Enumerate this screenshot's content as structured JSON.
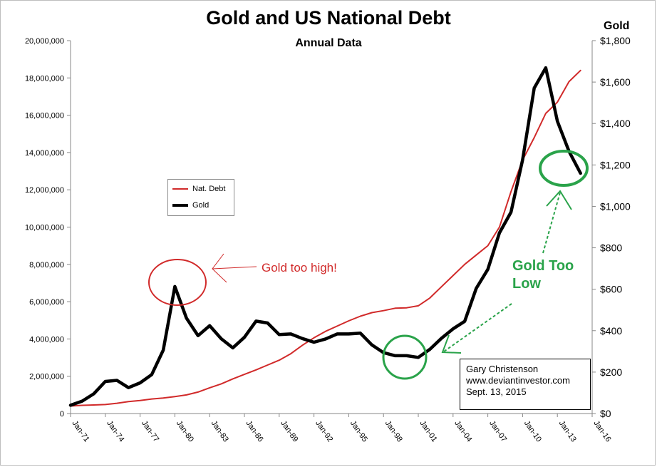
{
  "chart_data": {
    "type": "line",
    "title": "Gold and US National Debt",
    "subtitle": "Annual Data",
    "xlabel": "",
    "ylabel": "",
    "y2label": "Gold",
    "x_tick_labels": [
      "Jan-71",
      "Jan-74",
      "Jan-77",
      "Jan-80",
      "Jan-83",
      "Jan-86",
      "Jan-89",
      "Jan-92",
      "Jan-95",
      "Jan-98",
      "Jan-01",
      "Jan-04",
      "Jan-07",
      "Jan-10",
      "Jan-13",
      "Jan-16"
    ],
    "x_range": [
      1971,
      2016
    ],
    "ylim": [
      0,
      20000000
    ],
    "y_ticks": [
      0,
      2000000,
      4000000,
      6000000,
      8000000,
      10000000,
      12000000,
      14000000,
      16000000,
      18000000,
      20000000
    ],
    "y_tick_labels": [
      "0",
      "2,000,000",
      "4,000,000",
      "6,000,000",
      "8,000,000",
      "10,000,000",
      "12,000,000",
      "14,000,000",
      "16,000,000",
      "18,000,000",
      "20,000,000"
    ],
    "y2lim": [
      0,
      1800
    ],
    "y2_ticks": [
      0,
      200,
      400,
      600,
      800,
      1000,
      1200,
      1400,
      1600,
      1800
    ],
    "y2_tick_labels": [
      "$0",
      "$200",
      "$400",
      "$600",
      "$800",
      "$1,000",
      "$1,200",
      "$1,400",
      "$1,600",
      "$1,800"
    ],
    "grid": false,
    "legend_position": "middle-left",
    "series": [
      {
        "name": "Nat. Debt",
        "axis": "left",
        "color": "#d12a2a",
        "x": [
          1971,
          1972,
          1973,
          1974,
          1975,
          1976,
          1977,
          1978,
          1979,
          1980,
          1981,
          1982,
          1983,
          1984,
          1985,
          1986,
          1987,
          1988,
          1989,
          1990,
          1991,
          1992,
          1993,
          1994,
          1995,
          1996,
          1997,
          1998,
          1999,
          2000,
          2001,
          2002,
          2003,
          2004,
          2005,
          2006,
          2007,
          2008,
          2009,
          2010,
          2011,
          2012,
          2013,
          2014,
          2015
        ],
        "values": [
          400000,
          440000,
          460000,
          480000,
          550000,
          640000,
          700000,
          780000,
          830000,
          910000,
          1000000,
          1150000,
          1380000,
          1590000,
          1860000,
          2100000,
          2340000,
          2600000,
          2860000,
          3210000,
          3660000,
          4060000,
          4410000,
          4690000,
          4970000,
          5220000,
          5410000,
          5520000,
          5650000,
          5670000,
          5780000,
          6200000,
          6800000,
          7400000,
          8000000,
          8500000,
          9000000,
          10000000,
          11900000,
          13600000,
          14800000,
          16100000,
          16700000,
          17800000,
          18400000
        ]
      },
      {
        "name": "Gold",
        "axis": "right",
        "color": "#000000",
        "x": [
          1971,
          1972,
          1973,
          1974,
          1975,
          1976,
          1977,
          1978,
          1979,
          1980,
          1981,
          1982,
          1983,
          1984,
          1985,
          1986,
          1987,
          1988,
          1989,
          1990,
          1991,
          1992,
          1993,
          1994,
          1995,
          1996,
          1997,
          1998,
          1999,
          2000,
          2001,
          2002,
          2003,
          2004,
          2005,
          2006,
          2007,
          2008,
          2009,
          2010,
          2011,
          2012,
          2013,
          2014,
          2015
        ],
        "values": [
          40,
          60,
          95,
          155,
          160,
          125,
          148,
          188,
          306,
          613,
          460,
          376,
          424,
          361,
          317,
          368,
          446,
          437,
          381,
          384,
          362,
          344,
          360,
          384,
          384,
          388,
          331,
          294,
          279,
          279,
          271,
          310,
          363,
          409,
          445,
          604,
          696,
          872,
          972,
          1225,
          1571,
          1669,
          1411,
          1266,
          1160
        ]
      }
    ],
    "legend": [
      "Nat. Debt",
      "Gold"
    ],
    "annotations": {
      "gold_too_high": "Gold too high!",
      "gold_too_low_line1": "Gold Too",
      "gold_too_low_line2": "Low",
      "credit_name": "Gary Christenson",
      "credit_url": "www.deviantinvestor.com",
      "credit_date": "Sept. 13, 2015"
    },
    "colors": {
      "debt": "#d12a2a",
      "gold": "#000000",
      "annotation_red": "#d12a2a",
      "annotation_green": "#2aa34a"
    }
  }
}
